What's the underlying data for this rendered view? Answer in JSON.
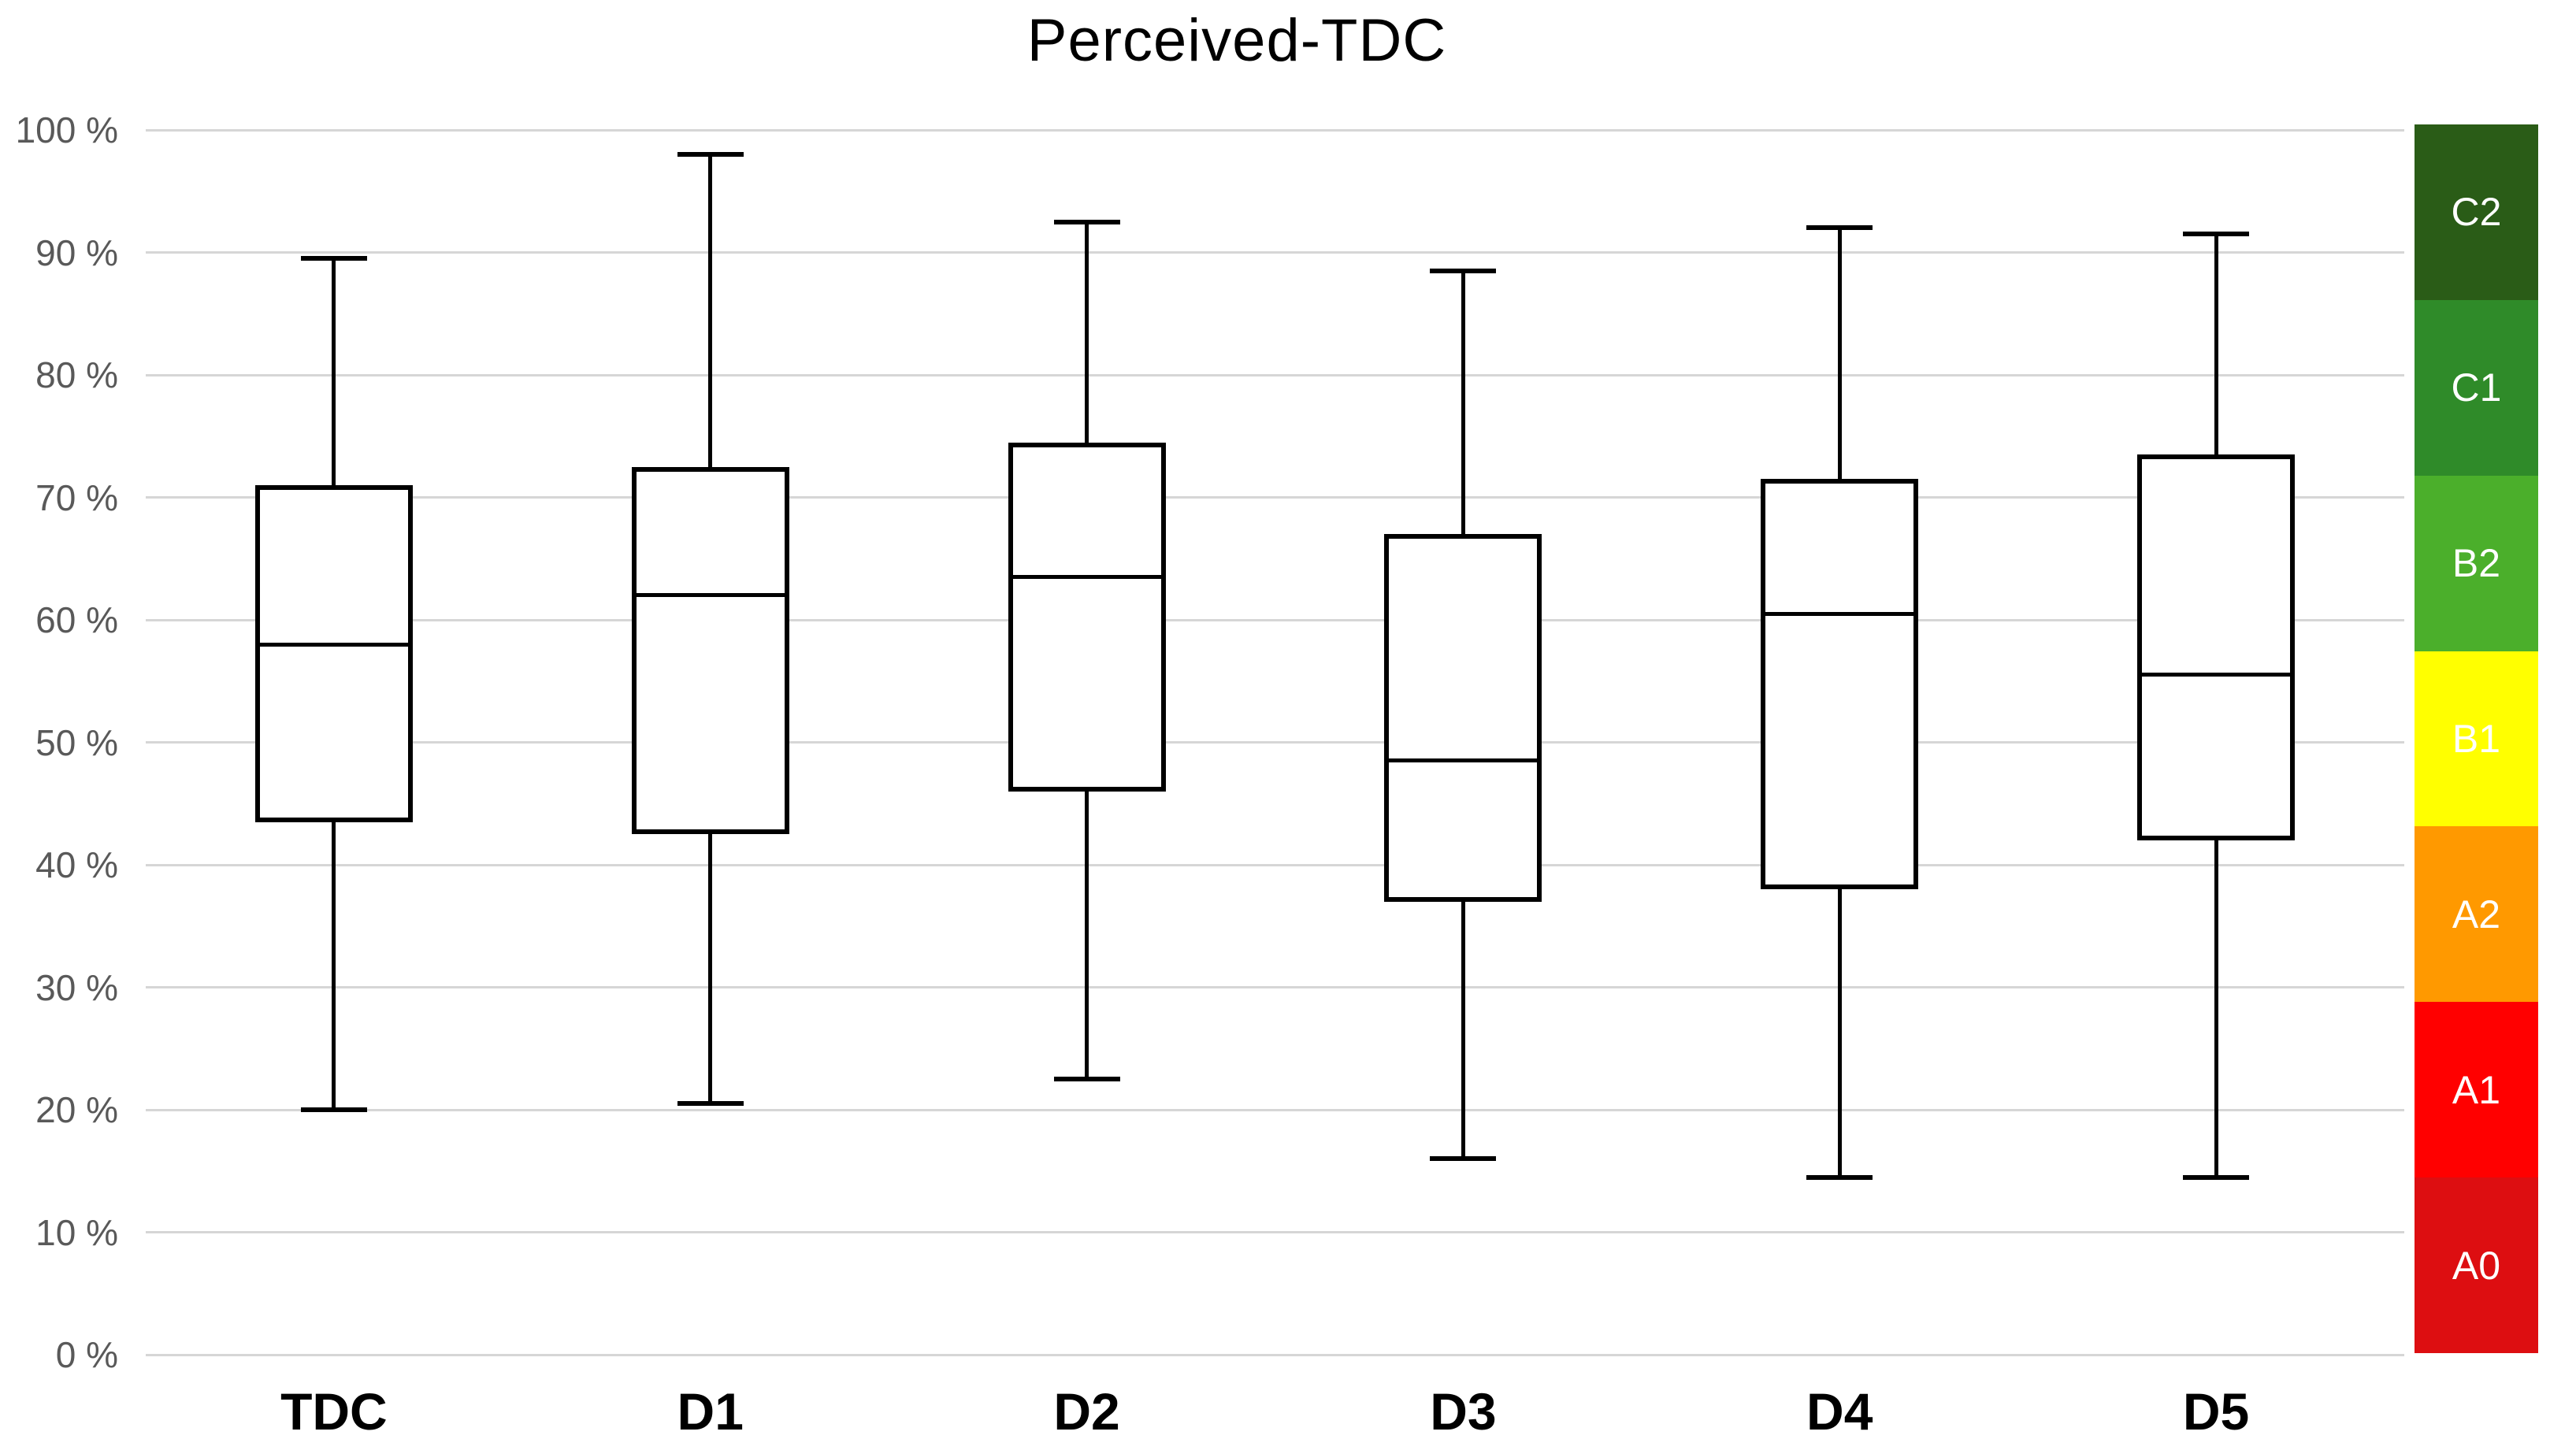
{
  "title": "Perceived-TDC",
  "chart_data": {
    "type": "boxplot",
    "title": "Perceived-TDC",
    "categories": [
      "TDC",
      "D1",
      "D2",
      "D3",
      "D4",
      "D5"
    ],
    "series": [
      {
        "name": "Perceived-TDC",
        "boxes": [
          {
            "category": "TDC",
            "min": 20,
            "q1": 43.5,
            "median": 58,
            "q3": 71,
            "max": 89.5
          },
          {
            "category": "D1",
            "min": 20.5,
            "q1": 42.5,
            "median": 62,
            "q3": 72.5,
            "max": 98
          },
          {
            "category": "D2",
            "min": 22.5,
            "q1": 46,
            "median": 63.5,
            "q3": 74.5,
            "max": 92.5
          },
          {
            "category": "D3",
            "min": 16,
            "q1": 37,
            "median": 48.5,
            "q3": 67,
            "max": 88.5
          },
          {
            "category": "D4",
            "min": 14.5,
            "q1": 38,
            "median": 60.5,
            "q3": 71.5,
            "max": 92
          },
          {
            "category": "D5",
            "min": 14.5,
            "q1": 42,
            "median": 55.5,
            "q3": 73.5,
            "max": 91.5
          }
        ]
      }
    ],
    "ylim": [
      0,
      100
    ],
    "ytick_step": 10,
    "ytick_labels": [
      "0 %",
      "10 %",
      "20 %",
      "30 %",
      "40 %",
      "50 %",
      "60 %",
      "70 %",
      "80 %",
      "90 %",
      "100 %"
    ],
    "grid": "horizontal",
    "legend": {
      "position": "right",
      "bands": [
        {
          "label": "C2",
          "color": "#2a5c17",
          "text_color": "#ffffff"
        },
        {
          "label": "C1",
          "color": "#2f8b29",
          "text_color": "#ffffff"
        },
        {
          "label": "B2",
          "color": "#4baf2b",
          "text_color": "#ffffff"
        },
        {
          "label": "B1",
          "color": "#ffff00",
          "text_color": "#ffffff"
        },
        {
          "label": "A2",
          "color": "#ff9900",
          "text_color": "#ffffff"
        },
        {
          "label": "A1",
          "color": "#ff0000",
          "text_color": "#ffffff"
        },
        {
          "label": "A0",
          "color": "#dd0e11",
          "text_color": "#ffffff"
        }
      ]
    },
    "colors": {
      "box_fill": "#ffffff",
      "box_stroke": "#000000",
      "gridline": "#d6d6d6",
      "tick_label": "#595959",
      "axis_label": "#000000",
      "background": "#ffffff"
    }
  }
}
